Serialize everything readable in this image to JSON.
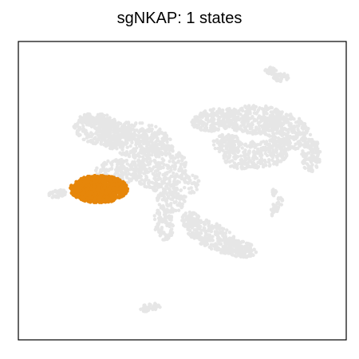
{
  "chart_data": {
    "type": "scatter",
    "title": "sgNKAP: 1 states",
    "xlabel": "",
    "ylabel": "",
    "grid": false,
    "legend": false,
    "colors": {
      "background_cells": "#e6e6e6",
      "highlight": "#e6860a",
      "frame": "#000000"
    },
    "series": [
      {
        "role": "background",
        "groups": [
          "main-cluster",
          "right-arc-cluster",
          "lower-right-cluster",
          "top-right-island",
          "small-left-island",
          "bottom-island",
          "right-small-islands"
        ]
      },
      {
        "name": "state 1",
        "role": "highlighted-state",
        "groups": [
          "highlighted-state-cluster"
        ]
      }
    ]
  }
}
